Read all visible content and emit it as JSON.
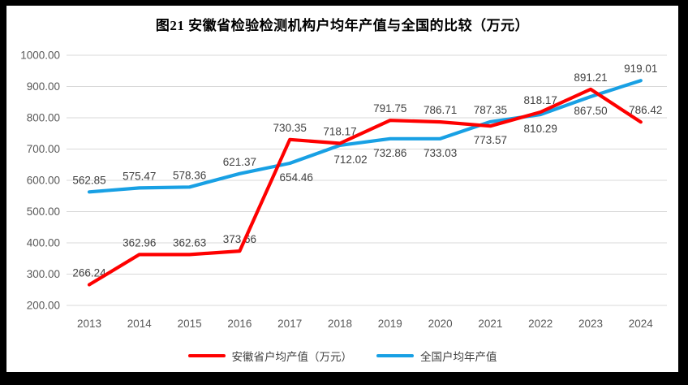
{
  "page": {
    "background": "#ffffff",
    "frame_color": "#000000"
  },
  "chart_data": {
    "type": "line",
    "title": "图21 安徽省检验检测机构户均年产值与全国的比较（万元）",
    "categories": [
      "2013",
      "2014",
      "2015",
      "2016",
      "2017",
      "2018",
      "2019",
      "2020",
      "2021",
      "2022",
      "2023",
      "2024"
    ],
    "series": [
      {
        "name": "全国户均年产值",
        "color": "#18a0e4",
        "values": [
          562.85,
          575.47,
          578.36,
          621.37,
          654.46,
          712.02,
          732.86,
          733.03,
          787.35,
          810.29,
          867.5,
          919.01
        ],
        "label_positions": [
          "above",
          "above",
          "above",
          "above",
          "below",
          "below",
          "below",
          "below",
          "above",
          "below",
          "below",
          "above"
        ],
        "label_dx": [
          0,
          0,
          0,
          0,
          8,
          13,
          0,
          0,
          0,
          0,
          0,
          0
        ]
      },
      {
        "name": "安徽省户均产值（万元）",
        "color": "#fe0000",
        "values": [
          266.24,
          362.96,
          362.63,
          373.66,
          730.35,
          718.17,
          791.75,
          786.71,
          773.57,
          818.17,
          891.21,
          786.42
        ],
        "label_positions": [
          "above",
          "above",
          "above",
          "above",
          "above",
          "above",
          "above",
          "above",
          "below",
          "above",
          "above",
          "above"
        ],
        "label_dx": [
          0,
          0,
          0,
          0,
          0,
          0,
          0,
          0,
          0,
          0,
          0,
          6
        ]
      }
    ],
    "legend_order": [
      1,
      0
    ],
    "ylim": [
      200,
      1000
    ],
    "ytick_step": 100,
    "ytick_labels": [
      "1000.00",
      "900.00",
      "800.00",
      "700.00",
      "600.00",
      "500.00",
      "400.00",
      "300.00",
      "200.00"
    ],
    "xlabel": "",
    "ylabel": "",
    "grid": "horizontal",
    "legend_position": "bottom",
    "gridline_color": "#d9d9d9",
    "axis_label_color": "#595959",
    "data_label_color": "#404040",
    "value_decimals": 2
  }
}
